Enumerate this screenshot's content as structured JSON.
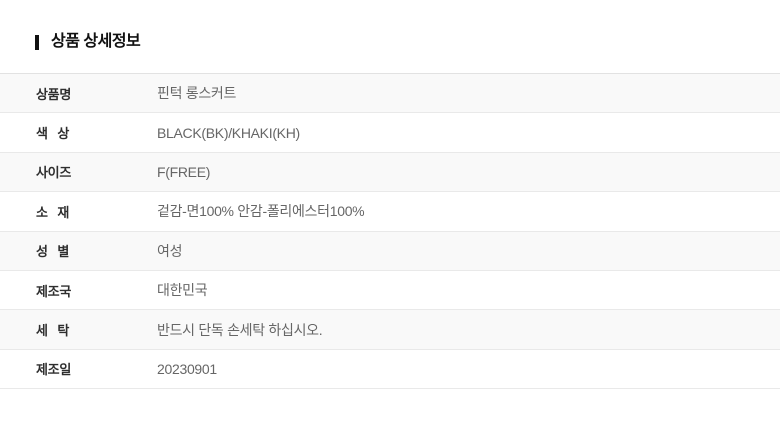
{
  "page": {
    "background_color": "#ffffff"
  },
  "section": {
    "title": "상품 상세정보",
    "accent_bar_color": "#111111"
  },
  "table": {
    "rows": [
      {
        "label": "상품명",
        "value": "핀턱 롱스커트"
      },
      {
        "label": "색 상",
        "value": "BLACK(BK)/KHAKI(KH)"
      },
      {
        "label": "사이즈",
        "value": "F(FREE)"
      },
      {
        "label": "소 재",
        "value": "겉감-면100% 안감-폴리에스터100%"
      },
      {
        "label": "성 별",
        "value": "여성"
      },
      {
        "label": "제조국",
        "value": "대한민국"
      },
      {
        "label": "세 탁",
        "value": "반드시 단독 손세탁 하십시오."
      },
      {
        "label": "제조일",
        "value": "20230901"
      }
    ],
    "colors": {
      "stripe_row_background": "#f9f9f9",
      "row_border": "#e9e9e9",
      "label_text": "#2e2e2e",
      "value_text": "#666666"
    }
  }
}
